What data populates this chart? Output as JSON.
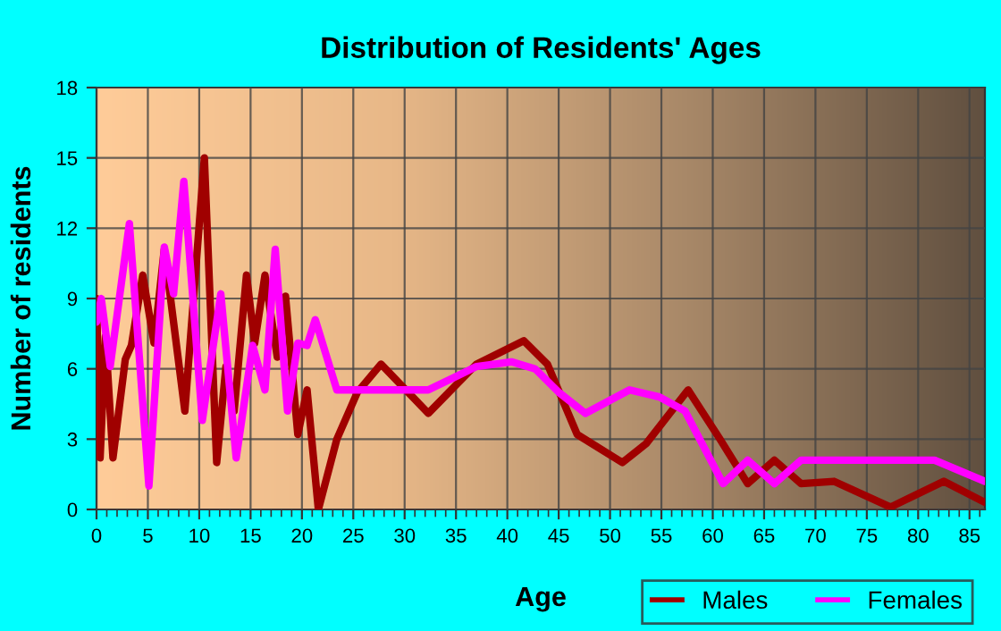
{
  "chart_data": {
    "type": "line",
    "title": "Distribution of Residents' Ages",
    "xlabel": "Age",
    "ylabel": "Number of residents",
    "xlim": [
      0,
      86.5
    ],
    "ylim": [
      0,
      18
    ],
    "xticks": [
      0,
      5,
      10,
      15,
      20,
      25,
      30,
      35,
      40,
      45,
      50,
      55,
      60,
      65,
      70,
      75,
      80,
      85
    ],
    "yticks": [
      0,
      3,
      6,
      9,
      12,
      15,
      18
    ],
    "grid": true,
    "legend": "bottom right",
    "marker": "none",
    "line_style": "solid",
    "series": [
      {
        "name": "Males",
        "color": "#a00000",
        "x": [
          0,
          0.35,
          0.87,
          1.6,
          2.8,
          3.4,
          4.5,
          5.6,
          6.6,
          8.6,
          10.5,
          11.7,
          12.6,
          13.4,
          14.6,
          15.4,
          16.4,
          17.6,
          18.4,
          19.6,
          20.5,
          21.6,
          23.4,
          25.4,
          27.7,
          32.3,
          37,
          41.6,
          43.9,
          46.8,
          51.2,
          53.5,
          57.6,
          60.7,
          63.4,
          66,
          68.6,
          71.8,
          77.3,
          82.5,
          86.5
        ],
        "values": [
          9,
          2.2,
          7.4,
          2.2,
          6.4,
          7,
          10,
          7.1,
          11.1,
          4.2,
          15,
          2,
          6.1,
          4.2,
          10,
          7.1,
          10,
          6.5,
          9.1,
          3.2,
          5.1,
          0,
          3,
          5,
          6.2,
          4.1,
          6.2,
          7.2,
          6.2,
          3.2,
          2,
          2.8,
          5.1,
          3,
          1.1,
          2.1,
          1.1,
          1.2,
          0.1,
          1.2,
          0.3
        ]
      },
      {
        "name": "Females",
        "color": "#ff00ff",
        "x": [
          0,
          0.46,
          1.33,
          3.2,
          5.1,
          6.6,
          7.5,
          8.5,
          10.3,
          12.1,
          13.6,
          15.2,
          16.4,
          17.4,
          18.6,
          19.6,
          20.5,
          21.3,
          23.4,
          27.7,
          32.3,
          37,
          40.4,
          42.7,
          45,
          47.6,
          51.9,
          54.8,
          57.3,
          61,
          63.4,
          66,
          68.6,
          77.3,
          81.6,
          86.5
        ],
        "values": [
          8,
          9,
          6.1,
          12.2,
          1,
          11.2,
          9.2,
          14,
          3.8,
          9.2,
          2.2,
          7,
          5.1,
          11.1,
          4.2,
          7.1,
          7,
          8.1,
          5.1,
          5.1,
          5.1,
          6.1,
          6.3,
          6,
          5,
          4.1,
          5.1,
          4.8,
          4.2,
          1.1,
          2.1,
          1.1,
          2.1,
          2.1,
          2.1,
          1.2
        ]
      }
    ]
  }
}
